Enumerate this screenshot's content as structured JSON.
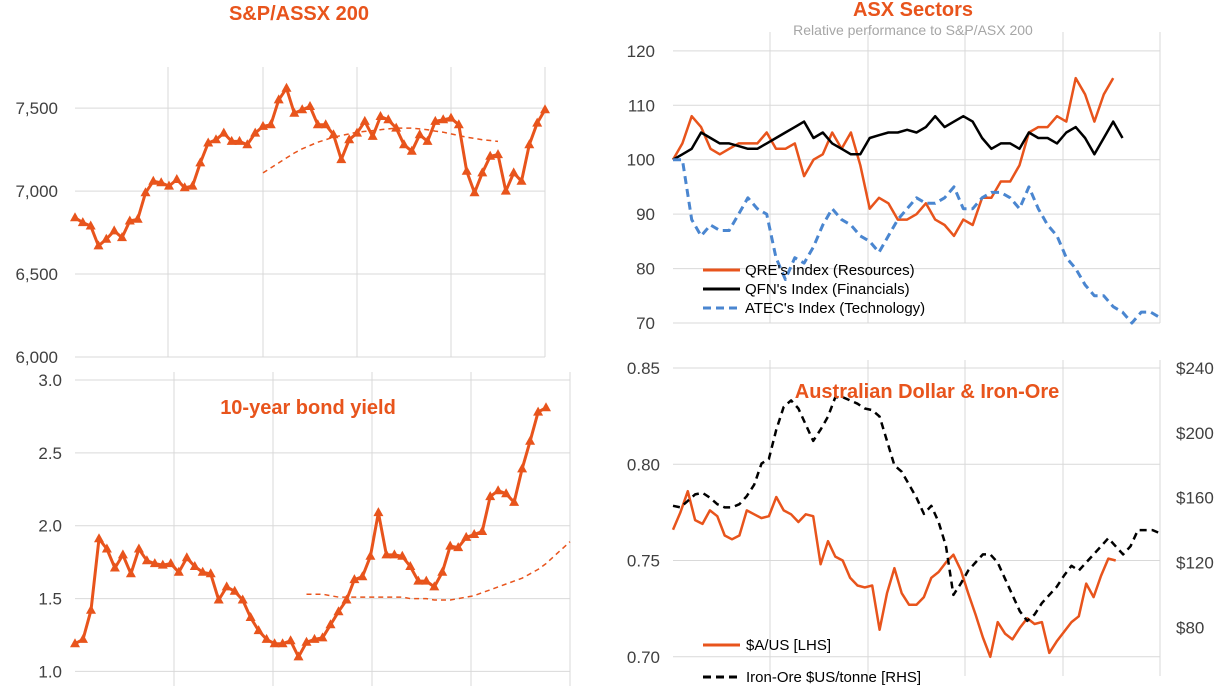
{
  "colors": {
    "accent": "#E8541C",
    "black": "#000000",
    "blue": "#4A86D0",
    "grid": "#d9d9d9",
    "axis_text": "#404040",
    "subtitle": "#a6a6a6"
  },
  "chart_data": [
    {
      "id": "sp_asx200",
      "type": "line",
      "title": "S&P/ASSX 200",
      "ylim": [
        6000,
        7700
      ],
      "yticks": [
        "6,000",
        "6,500",
        "7,000",
        "7,500"
      ],
      "ytick_values": [
        6000,
        6500,
        7000,
        7500
      ],
      "grid": true,
      "series": [
        {
          "style": "solid-triangle",
          "values": [
            6840,
            6810,
            6790,
            6670,
            6710,
            6760,
            6720,
            6820,
            6830,
            6990,
            7060,
            7050,
            7030,
            7070,
            7020,
            7030,
            7170,
            7290,
            7310,
            7350,
            7300,
            7300,
            7280,
            7350,
            7390,
            7400,
            7550,
            7620,
            7470,
            7490,
            7510,
            7400,
            7400,
            7340,
            7190,
            7310,
            7350,
            7420,
            7330,
            7450,
            7430,
            7380,
            7280,
            7240,
            7340,
            7300,
            7420,
            7430,
            7440,
            7400,
            7120,
            6990,
            7110,
            7210,
            7220,
            7000,
            7110,
            7060,
            7280,
            7410,
            7490
          ]
        },
        {
          "style": "dashed",
          "start_index": 24,
          "values": [
            7110,
            7140,
            7170,
            7200,
            7230,
            7255,
            7275,
            7295,
            7310,
            7325,
            7335,
            7345,
            7355,
            7360,
            7365,
            7370,
            7375,
            7380,
            7380,
            7380,
            7375,
            7370,
            7362,
            7355,
            7345,
            7335,
            7325,
            7318,
            7310,
            7305,
            7300
          ]
        }
      ]
    },
    {
      "id": "asx_sectors",
      "type": "line",
      "title": "ASX Sectors",
      "subtitle": "Relative performance to S&P/ASX 200",
      "ylim": [
        70,
        122
      ],
      "yticks": [
        "70",
        "80",
        "90",
        "100",
        "110",
        "120"
      ],
      "ytick_values": [
        70,
        80,
        90,
        100,
        110,
        120
      ],
      "grid": true,
      "legend": [
        "QRE's Index (Resources)",
        "QFN's Index (Financials)",
        "ATEC's Index (Technology)"
      ],
      "legend_position": "bottom-left",
      "series": [
        {
          "name": "QRE's Index (Resources)",
          "style": "solid-orange",
          "values": [
            100,
            103,
            108,
            106,
            102,
            101,
            102,
            103,
            103,
            103,
            105,
            102,
            102,
            103,
            97,
            100,
            101,
            105,
            102,
            105,
            99,
            91,
            93,
            92,
            89,
            89,
            90,
            92,
            89,
            88,
            86,
            89,
            88,
            93,
            93,
            96,
            96,
            99,
            105,
            106,
            106,
            108,
            107,
            115,
            112,
            107,
            112,
            115
          ]
        },
        {
          "name": "QFN's Index (Financials)",
          "style": "solid-black",
          "values": [
            100,
            101,
            102,
            105,
            104,
            103,
            103,
            102.5,
            102,
            102,
            103,
            104,
            105,
            106,
            107,
            104,
            105,
            103,
            102,
            101,
            101,
            104,
            104.5,
            105,
            105,
            105.5,
            105,
            106,
            108,
            106,
            107,
            108,
            107,
            104,
            102,
            103,
            103,
            102,
            105,
            104,
            104,
            103,
            105,
            106,
            104,
            101,
            104,
            107,
            104
          ]
        },
        {
          "name": "ATEC's Index (Technology)",
          "style": "dashed-blue",
          "values": [
            100,
            100,
            89,
            86,
            88,
            87,
            87,
            90,
            93,
            91,
            90,
            82,
            78,
            82,
            81,
            84,
            88,
            91,
            89,
            88,
            86,
            85,
            83,
            86,
            89,
            91,
            93,
            92,
            92,
            93,
            95,
            91,
            91,
            93,
            94,
            94,
            93,
            91,
            95,
            91,
            88,
            86,
            82,
            80,
            77,
            75,
            75,
            73,
            72,
            70,
            72,
            72,
            71
          ]
        }
      ]
    },
    {
      "id": "bond_yield",
      "type": "line",
      "title": "10-year bond yield",
      "ylim": [
        0.9,
        3.0
      ],
      "yticks": [
        "1.0",
        "1.5",
        "2.0",
        "2.5",
        "3.0"
      ],
      "ytick_values": [
        1.0,
        1.5,
        2.0,
        2.5,
        3.0
      ],
      "grid": true,
      "series": [
        {
          "style": "solid-triangle",
          "values": [
            1.19,
            1.22,
            1.42,
            1.91,
            1.84,
            1.71,
            1.8,
            1.67,
            1.84,
            1.76,
            1.74,
            1.73,
            1.74,
            1.68,
            1.78,
            1.72,
            1.68,
            1.67,
            1.49,
            1.58,
            1.55,
            1.49,
            1.37,
            1.28,
            1.22,
            1.19,
            1.19,
            1.21,
            1.1,
            1.2,
            1.22,
            1.23,
            1.32,
            1.41,
            1.49,
            1.63,
            1.65,
            1.79,
            2.09,
            1.8,
            1.8,
            1.79,
            1.72,
            1.62,
            1.62,
            1.58,
            1.68,
            1.86,
            1.85,
            1.92,
            1.94,
            1.96,
            2.2,
            2.24,
            2.22,
            2.16,
            2.39,
            2.58,
            2.78,
            2.81
          ]
        },
        {
          "style": "dashed",
          "start_index": 29,
          "values": [
            1.53,
            1.53,
            1.53,
            1.52,
            1.51,
            1.51,
            1.51,
            1.51,
            1.51,
            1.51,
            1.51,
            1.51,
            1.51,
            1.5,
            1.5,
            1.5,
            1.49,
            1.49,
            1.49,
            1.5,
            1.51,
            1.52,
            1.54,
            1.56,
            1.58,
            1.6,
            1.62,
            1.64,
            1.67,
            1.7,
            1.74,
            1.79,
            1.84,
            1.89
          ]
        }
      ]
    },
    {
      "id": "aud_iron_ore",
      "type": "line",
      "title": "Australian Dollar & Iron-Ore",
      "ylim": [
        0.69,
        0.85
      ],
      "yticks": [
        "0.70",
        "0.75",
        "0.80",
        "0.85"
      ],
      "ytick_values": [
        0.7,
        0.75,
        0.8,
        0.85
      ],
      "y2lim": [
        50,
        240
      ],
      "y2ticks": [
        "$80",
        "$120",
        "$160",
        "$200",
        "$240"
      ],
      "y2tick_values": [
        80,
        120,
        160,
        200,
        240
      ],
      "grid": true,
      "legend": [
        "$A/US [LHS]",
        "Iron-Ore $US/tonne [RHS]"
      ],
      "legend_position": "bottom-left",
      "series": [
        {
          "name": "$A/US [LHS]",
          "axis": "left",
          "style": "solid-orange",
          "values": [
            0.766,
            0.775,
            0.786,
            0.771,
            0.769,
            0.776,
            0.773,
            0.763,
            0.761,
            0.763,
            0.776,
            0.774,
            0.772,
            0.773,
            0.783,
            0.776,
            0.774,
            0.77,
            0.774,
            0.773,
            0.748,
            0.76,
            0.752,
            0.75,
            0.741,
            0.737,
            0.736,
            0.737,
            0.714,
            0.733,
            0.746,
            0.733,
            0.727,
            0.727,
            0.731,
            0.741,
            0.744,
            0.749,
            0.753,
            0.745,
            0.733,
            0.722,
            0.71,
            0.7,
            0.718,
            0.712,
            0.709,
            0.715,
            0.72,
            0.717,
            0.718,
            0.702,
            0.708,
            0.713,
            0.718,
            0.721,
            0.738,
            0.731,
            0.742,
            0.751,
            0.75
          ]
        },
        {
          "name": "Iron-Ore $US/tonne [RHS]",
          "axis": "right",
          "style": "dashed-black",
          "values": [
            155,
            154,
            158,
            162,
            163,
            160,
            156,
            154,
            154,
            156,
            161,
            168,
            181,
            184,
            202,
            216,
            220,
            215,
            205,
            195,
            202,
            210,
            222,
            222,
            220,
            218,
            215,
            214,
            210,
            195,
            180,
            176,
            168,
            160,
            150,
            155,
            145,
            130,
            100,
            107,
            115,
            120,
            125,
            125,
            120,
            110,
            100,
            90,
            84,
            88,
            95,
            100,
            105,
            112,
            118,
            115,
            120,
            125,
            130,
            135,
            130,
            125,
            130,
            140,
            140,
            140,
            138
          ]
        }
      ]
    }
  ]
}
